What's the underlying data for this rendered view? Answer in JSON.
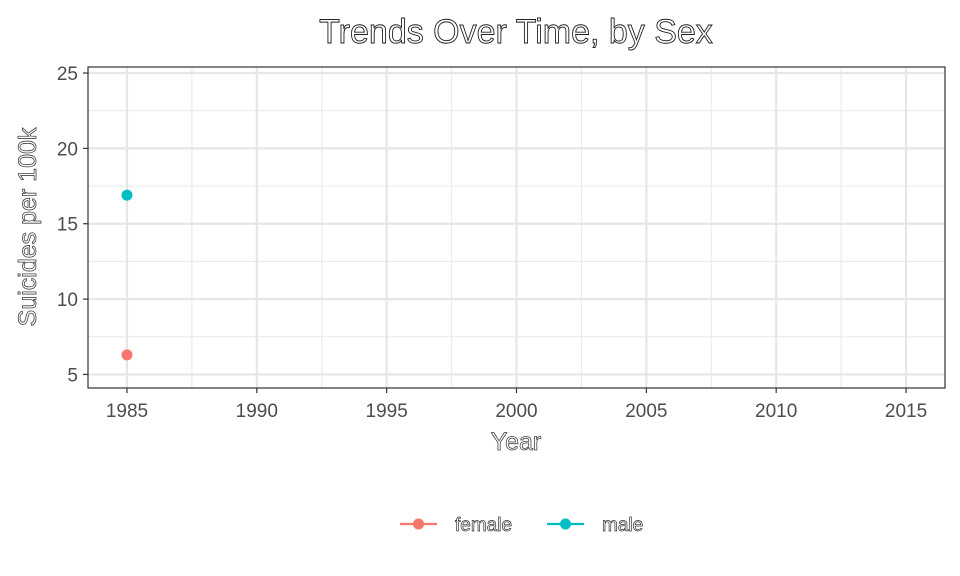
{
  "chart_data": {
    "type": "line",
    "title": "Trends Over Time, by Sex",
    "xlabel": "Year",
    "ylabel": "Suicides per 100k",
    "xlim": [
      1983.5,
      2016.5
    ],
    "ylim": [
      4.1,
      25.4
    ],
    "x_ticks": [
      1985,
      1990,
      1995,
      2000,
      2005,
      2010,
      2015
    ],
    "y_ticks": [
      5,
      10,
      15,
      20,
      25
    ],
    "grid": true,
    "legend_position": "bottom",
    "series": [
      {
        "name": "female",
        "color": "#F8766D",
        "points": [
          {
            "x": 1985,
            "y": 6.3
          }
        ]
      },
      {
        "name": "male",
        "color": "#00BFC4",
        "points": [
          {
            "x": 1985,
            "y": 16.9
          }
        ]
      }
    ]
  }
}
